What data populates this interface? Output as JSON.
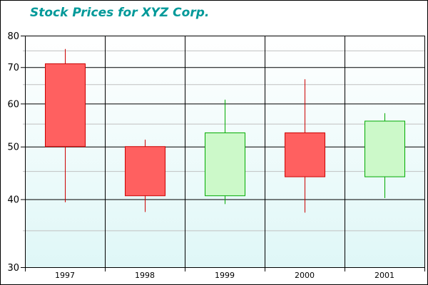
{
  "chart_data": {
    "type": "candlestick",
    "title": "Stock Prices for XYZ Corp.",
    "xlabel": "",
    "ylabel": "",
    "y_scale": "log",
    "ylim": [
      30,
      80
    ],
    "y_ticks": [
      30,
      40,
      50,
      60,
      70,
      80
    ],
    "y_minor_gridlines": [
      35,
      45,
      55,
      65,
      75
    ],
    "categories": [
      "1997",
      "1998",
      "1999",
      "2000",
      "2001"
    ],
    "series": [
      {
        "name": "XYZ Corp.",
        "open": [
          71,
          50,
          40.6,
          53,
          44
        ],
        "high": [
          75.6,
          51.5,
          61,
          66.5,
          57.6
        ],
        "low": [
          39.5,
          37.9,
          39.2,
          37.8,
          40.2
        ],
        "close": [
          50,
          40.6,
          53,
          44,
          55.7
        ]
      }
    ],
    "colors": {
      "up_fill": "#ccf9c9",
      "up_stroke": "#00aa00",
      "down_fill": "#ff6060",
      "down_stroke": "#cc0000",
      "title": "#009999",
      "bg_top": "#ffffff",
      "bg_bottom": "#dff7f7"
    },
    "grid": true,
    "legend": "none"
  }
}
